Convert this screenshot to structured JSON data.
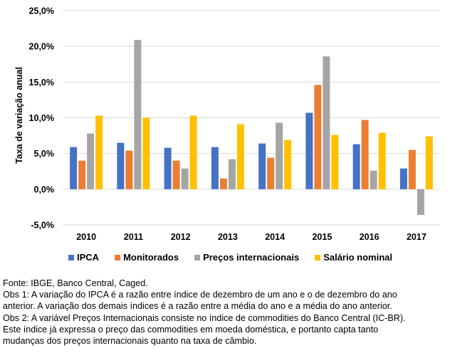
{
  "chart_data": {
    "type": "bar",
    "title": "",
    "xlabel": "",
    "ylabel": "Taxa de variação anual",
    "ylim": [
      -5,
      25
    ],
    "yticks": [
      -5,
      0,
      5,
      10,
      15,
      20,
      25
    ],
    "ytick_labels": [
      "-5,0%",
      "0,0%",
      "5,0%",
      "10,0%",
      "15,0%",
      "20,0%",
      "25,0%"
    ],
    "grid": true,
    "legend_position": "bottom",
    "categories": [
      "2010",
      "2011",
      "2012",
      "2013",
      "2014",
      "2015",
      "2016",
      "2017"
    ],
    "series": [
      {
        "name": "IPCA",
        "color": "#4472C4",
        "values": [
          5.9,
          6.5,
          5.8,
          5.9,
          6.4,
          10.7,
          6.3,
          2.9
        ]
      },
      {
        "name": "Monitorados",
        "color": "#ED7D31",
        "values": [
          4.0,
          5.4,
          4.0,
          1.5,
          4.4,
          14.6,
          9.7,
          5.5
        ]
      },
      {
        "name": "Preços internacionais",
        "color": "#A5A5A5",
        "values": [
          7.8,
          20.9,
          2.9,
          4.2,
          9.3,
          18.6,
          2.6,
          -3.6
        ]
      },
      {
        "name": "Salário nominal",
        "color": "#FFC000",
        "values": [
          10.3,
          10.0,
          10.3,
          9.1,
          6.9,
          7.6,
          7.9,
          7.4
        ]
      }
    ]
  },
  "notes": [
    "Fonte: IBGE, Banco Central, Caged.",
    "Obs 1: A variação do IPCA é a razão entre índice de dezembro de um ano e o de dezembro do ano",
    "anterior. A variação dos demais índices é a razão entre a média do ano e a média do ano anterior.",
    "Obs 2: A variável Preços Internacionais consiste no índice de commodities do Banco Central (IC-BR).",
    "Este índice já expressa o preço das commodities em moeda doméstica, e portanto capta tanto",
    "mudanças dos preços internacionais quanto na taxa de câmbio."
  ]
}
